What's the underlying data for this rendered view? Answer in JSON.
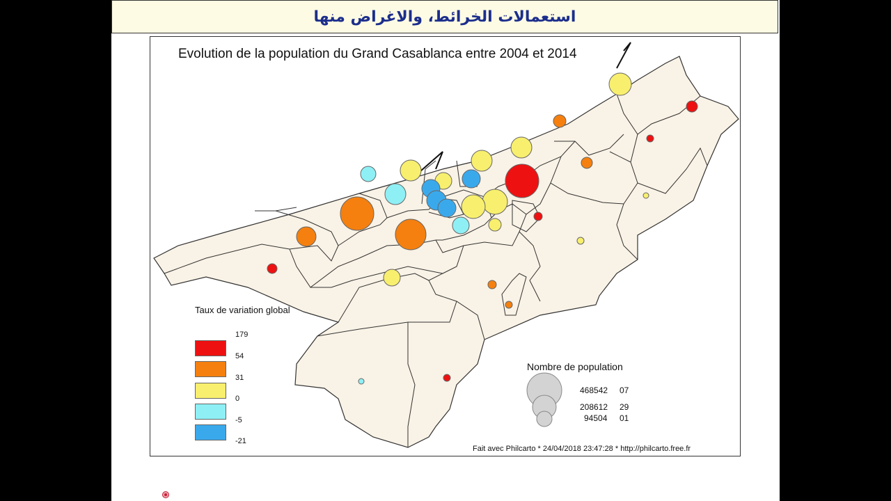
{
  "slide_title": "استعمالات الخرائط، والاغراض منها",
  "map": {
    "title": "Evolution de la population du Grand Casablanca entre 2004 et 2014",
    "legend": {
      "title": "Taux de variation global",
      "classes": [
        {
          "color": "#ee1111",
          "label": "179"
        },
        {
          "color": "#f5800f",
          "label": "54"
        },
        {
          "color": "#f8ef6e",
          "label": "31"
        },
        {
          "color": "#8ef0f5",
          "label": "0"
        },
        {
          "color": "#3aa9ec",
          "label": "-5"
        }
      ],
      "last_label": "-21"
    },
    "size_legend": {
      "title": "Nombre de population",
      "entries": [
        {
          "value": "468542",
          "suffix": "07"
        },
        {
          "value": "208612",
          "suffix": "29"
        },
        {
          "value": "94504",
          "suffix": "01"
        }
      ]
    },
    "credit": "Fait avec Philcarto * 24/04/2018 23:47:28 * http://philcarto.free.fr",
    "colors": {
      "land": "#f9f2e6",
      "border": "#333333"
    }
  }
}
